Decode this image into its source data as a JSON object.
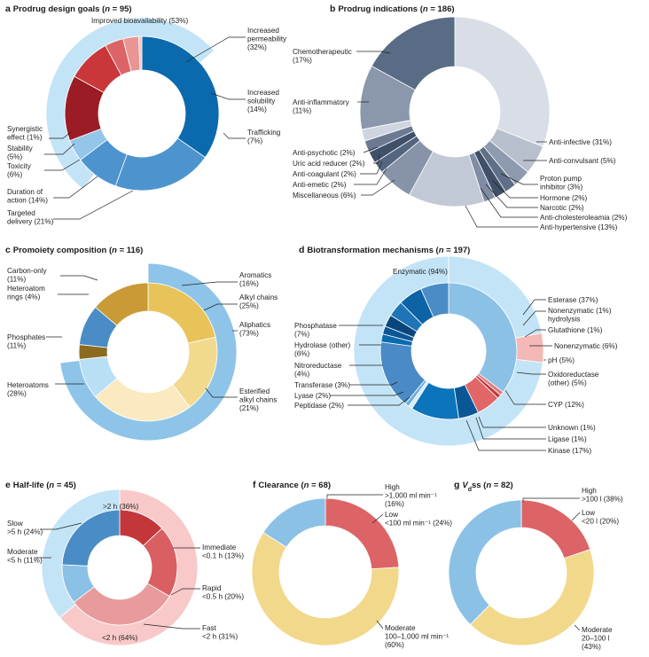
{
  "chart_data": [
    {
      "id": "a",
      "type": "pie",
      "letter": "a",
      "title_main": "Prodrug design goals",
      "n_text": "n = 95",
      "inner": [
        {
          "name": "Improved bioavailability",
          "value": 53,
          "color": "#0b6aae"
        },
        {
          "name": "Increased permeability",
          "value": 32,
          "color": "#4d94cf"
        },
        {
          "name": "Increased solubility",
          "value": 14,
          "color": "#4d94cf"
        },
        {
          "name": "Trafficking",
          "value": 7,
          "color": "#93c6e9"
        },
        {
          "name": "Targeted delivery",
          "value": 21,
          "color": "#9b1c24"
        },
        {
          "name": "Duration of action",
          "value": 14,
          "color": "#c9373a"
        },
        {
          "name": "Toxicity",
          "value": 6,
          "color": "#dd6466"
        },
        {
          "name": "Stability",
          "value": 5,
          "color": "#e89594"
        },
        {
          "name": "Synergistic effect",
          "value": 1,
          "color": "#f4c5c3"
        }
      ],
      "outer": [
        {
          "name": "Improved bioavailability",
          "value": 53,
          "color": "#c3e4f7"
        }
      ],
      "labels": [
        {
          "lines": [
            "Improved bioavailability (53%)"
          ]
        },
        {
          "lines": [
            "Increased",
            "permeability",
            "(32%)"
          ]
        },
        {
          "lines": [
            "Increased",
            "solubility",
            "(14%)"
          ]
        },
        {
          "lines": [
            "Trafficking",
            "(7%)"
          ]
        },
        {
          "lines": [
            "Synergistic",
            "effect (1%)"
          ]
        },
        {
          "lines": [
            "Stability",
            "(5%)"
          ]
        },
        {
          "lines": [
            "Toxicity",
            "(6%)"
          ]
        },
        {
          "lines": [
            "Duration of",
            "action (14%)"
          ]
        },
        {
          "lines": [
            "Targeted",
            "delivery (21%)"
          ]
        }
      ]
    },
    {
      "id": "b",
      "type": "pie",
      "letter": "b",
      "title_main": "Prodrug indications",
      "n_text": "n = 186",
      "inner": [
        {
          "name": "Anti-infective",
          "value": 31,
          "color": "#d8dde6"
        },
        {
          "name": "Anti-convulsant",
          "value": 5,
          "color": "#b8c0cd"
        },
        {
          "name": "Proton pump inhibitor",
          "value": 3,
          "color": "#8d9aaf"
        },
        {
          "name": "Hormone",
          "value": 2,
          "color": "#5f6f88"
        },
        {
          "name": "Narcotic",
          "value": 2,
          "color": "#3f5068"
        },
        {
          "name": "Anti-cholesteroleamia",
          "value": 2,
          "color": "#7f8ca3"
        },
        {
          "name": "Anti-hypertensive",
          "value": 13,
          "color": "#c2c9d6"
        },
        {
          "name": "Miscellaneous",
          "value": 6,
          "color": "#8693a9"
        },
        {
          "name": "Anti-emetic",
          "value": 2,
          "color": "#546580"
        },
        {
          "name": "Anti-coagulant",
          "value": 2,
          "color": "#3f5068"
        },
        {
          "name": "Uric acid reducer",
          "value": 2,
          "color": "#6b7a92"
        },
        {
          "name": "Anti-psychotic",
          "value": 2,
          "color": "#cfd5df"
        },
        {
          "name": "Anti-inflammatory",
          "value": 11,
          "color": "#8a97ac"
        },
        {
          "name": "Chemotherapeutic",
          "value": 17,
          "color": "#5a6b85"
        }
      ],
      "labels": [
        {
          "lines": [
            "Anti-infective (31%)"
          ]
        },
        {
          "lines": [
            "Anti-convulsant (5%)"
          ]
        },
        {
          "lines": [
            "Proton pump",
            "inhibitor (3%)"
          ]
        },
        {
          "lines": [
            "Hormone (2%)"
          ]
        },
        {
          "lines": [
            "Narcotic (2%)"
          ]
        },
        {
          "lines": [
            "Anti-cholesteroleamia (2%)"
          ]
        },
        {
          "lines": [
            "Anti-hypertensive (13%)"
          ]
        },
        {
          "lines": [
            "Miscellaneous (6%)"
          ]
        },
        {
          "lines": [
            "Anti-emetic (2%)"
          ]
        },
        {
          "lines": [
            "Anti-coagulant (2%)"
          ]
        },
        {
          "lines": [
            "Uric acid reducer (2%)"
          ]
        },
        {
          "lines": [
            "Anti-psychotic (2%)"
          ]
        },
        {
          "lines": [
            "Anti-inflammatory",
            "(11%)"
          ]
        },
        {
          "lines": [
            "Chemotherapeutic",
            "(17%)"
          ]
        }
      ]
    },
    {
      "id": "c",
      "type": "pie",
      "letter": "c",
      "title_main": "Promoiety composition",
      "n_text": "n = 116",
      "inner": [
        {
          "name": "Alkyl chains",
          "value": 25,
          "color": "#e8c35a"
        },
        {
          "name": "Esterified alkyl chains",
          "value": 21,
          "color": "#f1d98e"
        },
        {
          "name": "Heteroatoms",
          "value": 28,
          "color": "#fbe9bf"
        },
        {
          "name": "Phosphates",
          "value": 11,
          "color": "#b9dff5"
        },
        {
          "name": "Heteroatom rings",
          "value": 4,
          "color": "#8c6a1f"
        },
        {
          "name": "Carbon-only",
          "value": 11,
          "color": "#4a8cc6"
        },
        {
          "name": "Aromatics",
          "value": 16,
          "color": "#c99a36"
        }
      ],
      "outer": [
        {
          "name": "Aliphatics",
          "value": 73,
          "color": "#8ec4e8"
        }
      ],
      "labels": [
        {
          "lines": [
            "Aromatics",
            "(16%)"
          ]
        },
        {
          "lines": [
            "Alkyl chains",
            "(25%)"
          ]
        },
        {
          "lines": [
            "Aliphatics",
            "(73%)"
          ]
        },
        {
          "lines": [
            "Esterified",
            "alkyl chains",
            "(21%)"
          ]
        },
        {
          "lines": [
            "Heteroatoms",
            "(28%)"
          ]
        },
        {
          "lines": [
            "Phosphates",
            "(11%)"
          ]
        },
        {
          "lines": [
            "Heteroatom",
            "rings (4%)"
          ]
        },
        {
          "lines": [
            "Carbon-only",
            "(11%)"
          ]
        }
      ]
    },
    {
      "id": "d",
      "type": "pie",
      "letter": "d",
      "title_main": "Biotransformation mechanisms",
      "n_text": "n = 197",
      "inner": [
        {
          "name": "Esterase",
          "value": 37,
          "color": "#8cc1e6"
        },
        {
          "name": "Nonenzymatic hydrolysis",
          "value": 1,
          "color": "#e07a7c"
        },
        {
          "name": "Glutathione",
          "value": 1,
          "color": "#c23a3d"
        },
        {
          "name": "Nonenzymatic",
          "value": 6,
          "color": "#e06668"
        },
        {
          "name": "Oxidoreductase (other)",
          "value": 5,
          "color": "#0a5796"
        },
        {
          "name": "CYP",
          "value": 12,
          "color": "#0b74bb"
        },
        {
          "name": "Unknown",
          "value": 1,
          "color": "#d6ecf8"
        },
        {
          "name": "Ligase",
          "value": 1,
          "color": "#6aaedc"
        },
        {
          "name": "Kinase",
          "value": 17,
          "color": "#4a8ac6"
        },
        {
          "name": "Peptidase",
          "value": 2,
          "color": "#0b6aae"
        },
        {
          "name": "Lyase",
          "value": 2,
          "color": "#0a5796"
        },
        {
          "name": "Transferase",
          "value": 3,
          "color": "#0a467e"
        },
        {
          "name": "Nitroreductase",
          "value": 4,
          "color": "#1f74b6"
        },
        {
          "name": "Hydrolase (other)",
          "value": 6,
          "color": "#0c63a6"
        },
        {
          "name": "Phosphatase",
          "value": 7,
          "color": "#4a8cc6"
        }
      ],
      "outer": [
        {
          "name": "Enzymatic",
          "value": 94,
          "color": "#c3e4f7"
        },
        {
          "name": "pH",
          "value": 5,
          "color": "#f4b8b6"
        },
        {
          "name": "Enzymatic",
          "value": 94,
          "color": "#c3e4f7"
        }
      ],
      "labels": [
        {
          "lines": [
            "Enzymatic (94%)"
          ]
        },
        {
          "lines": [
            "Esterase (37%)"
          ]
        },
        {
          "lines": [
            "Nonenzymatic (1%)",
            "hydrolysis"
          ]
        },
        {
          "lines": [
            "Glutathione (1%)"
          ]
        },
        {
          "lines": [
            "Nonenzymatic (6%)"
          ]
        },
        {
          "lines": [
            "pH (5%)"
          ]
        },
        {
          "lines": [
            "Oxidoreductase",
            "(other) (5%)"
          ]
        },
        {
          "lines": [
            "CYP (12%)"
          ]
        },
        {
          "lines": [
            "Unknown (1%)"
          ]
        },
        {
          "lines": [
            "Ligase (1%)"
          ]
        },
        {
          "lines": [
            "Kinase (17%)"
          ]
        },
        {
          "lines": [
            "Peptidase (2%)"
          ]
        },
        {
          "lines": [
            "Lyase (2%)"
          ]
        },
        {
          "lines": [
            "Transferase (3%)"
          ]
        },
        {
          "lines": [
            "Nitroreductase",
            "(4%)"
          ]
        },
        {
          "lines": [
            "Hydrolase (other)",
            "(6%)"
          ]
        },
        {
          "lines": [
            "Phosphatase",
            "(7%)"
          ]
        }
      ]
    },
    {
      "id": "e",
      "type": "pie",
      "letter": "e",
      "title_main": "Half-life",
      "n_text": "n = 45",
      "inner": [
        {
          "name": "Immediate",
          "value": 13,
          "color": "#c3373a"
        },
        {
          "name": "Rapid",
          "value": 20,
          "color": "#d95f62"
        },
        {
          "name": "Fast",
          "value": 31,
          "color": "#e89b9b"
        },
        {
          "name": "Moderate",
          "value": 11,
          "color": "#8cc1e6"
        },
        {
          "name": "Slow",
          "value": 24,
          "color": "#4a8cc6"
        }
      ],
      "outer": [
        {
          "name": "<2 h",
          "value": 64,
          "color": "#f8c9c8"
        },
        {
          "name": ">2 h",
          "value": 36,
          "color": "#c3e4f7"
        }
      ],
      "labels": [
        {
          "lines": [
            ">2 h (36%)"
          ]
        },
        {
          "lines": [
            "Immediate",
            "<0.1 h (13%)"
          ]
        },
        {
          "lines": [
            "Rapid",
            "<0.5 h (20%)"
          ]
        },
        {
          "lines": [
            "Fast",
            "<2 h (31%)"
          ]
        },
        {
          "lines": [
            "<2 h (64%)"
          ]
        },
        {
          "lines": [
            "Moderate",
            "<5 h (11%)"
          ]
        },
        {
          "lines": [
            "Slow",
            ">5 h (24%)"
          ]
        }
      ]
    },
    {
      "id": "f",
      "type": "pie",
      "letter": "f",
      "title_main": "Clearance",
      "n_text": "n = 68",
      "inner": [
        {
          "name": "Low",
          "value": 24,
          "color": "#dd6466"
        },
        {
          "name": "Moderate",
          "value": 60,
          "color": "#f2d88a"
        },
        {
          "name": "High",
          "value": 16,
          "color": "#8cc1e6"
        }
      ],
      "labels": [
        {
          "lines": [
            "High",
            ">1,000 ml min⁻¹",
            "(16%)"
          ]
        },
        {
          "lines": [
            "Low",
            "<100 ml min⁻¹ (24%)"
          ]
        },
        {
          "lines": [
            "Moderate",
            "100–1,000 ml min⁻¹",
            "(60%)"
          ]
        }
      ]
    },
    {
      "id": "g",
      "type": "pie",
      "letter": "g",
      "title_main": "ss",
      "n_text": "n = 82",
      "inner": [
        {
          "name": "Low",
          "value": 20,
          "color": "#dd6466"
        },
        {
          "name": "Moderate",
          "value": 43,
          "color": "#f2d88a"
        },
        {
          "name": "High",
          "value": 38,
          "color": "#8cc1e6"
        }
      ],
      "labels": [
        {
          "lines": [
            "High",
            ">100 l (38%)"
          ]
        },
        {
          "lines": [
            "Low",
            "<20 l (20%)"
          ]
        },
        {
          "lines": [
            "Moderate",
            "20–100 l",
            "(43%)"
          ]
        }
      ]
    }
  ]
}
